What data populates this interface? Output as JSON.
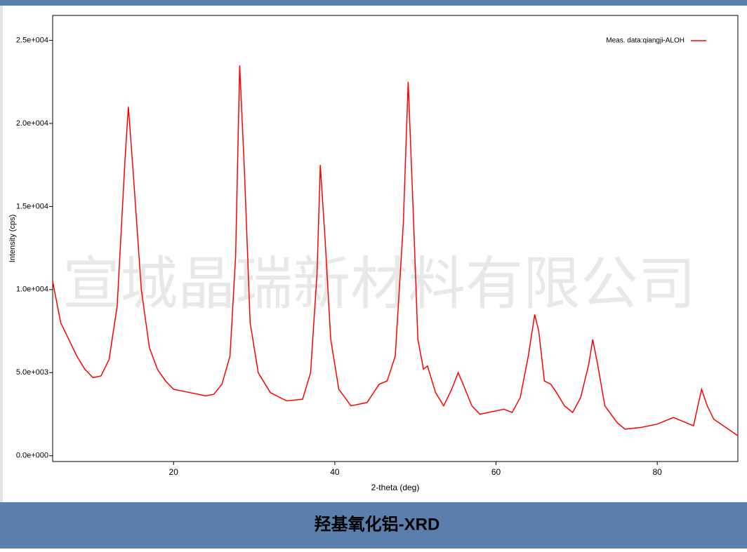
{
  "chart_data": {
    "type": "line",
    "title": "羟基氧化铝-XRD",
    "watermark": "宣城晶瑞新材料有限公司",
    "x_label": "2-theta (deg)",
    "y_label": "Intensity (cps)",
    "legend": "top-right",
    "xlim": [
      5,
      90
    ],
    "ylim": [
      -350,
      26500
    ],
    "xticks": [
      20,
      40,
      60,
      80
    ],
    "yticks": [
      {
        "value": 0,
        "label": "0.0e+000"
      },
      {
        "value": 5000,
        "label": "5.0e+003"
      },
      {
        "value": 10000,
        "label": "1.0e+004"
      },
      {
        "value": 15000,
        "label": "1.5e+004"
      },
      {
        "value": 20000,
        "label": "2.0e+004"
      },
      {
        "value": 25000,
        "label": "2.5e+004"
      }
    ],
    "x": [
      5,
      6,
      7,
      8,
      9,
      10,
      11,
      12,
      13,
      14,
      14.4,
      15,
      16,
      17,
      18,
      19,
      20,
      22,
      24,
      25,
      26,
      27,
      27.7,
      28.2,
      28.8,
      29.5,
      30.5,
      32,
      34,
      36,
      37,
      37.8,
      38.2,
      38.8,
      39.5,
      40.5,
      42,
      44,
      45.5,
      46.5,
      47.5,
      48.5,
      49.1,
      49.7,
      50.3,
      51,
      51.5,
      52.5,
      53.5,
      54.5,
      55.3,
      56,
      57,
      58,
      60,
      61,
      62,
      63,
      64,
      64.8,
      65.3,
      66,
      66.8,
      67.5,
      68.5,
      69.5,
      70.5,
      71.5,
      72,
      72.6,
      73.5,
      75,
      76,
      78,
      80,
      82,
      83.5,
      84.5,
      85.5,
      86.2,
      87,
      88.5,
      90
    ],
    "series": [
      {
        "name": "Meas. data:qiangji-ALOH",
        "color": "#ff0000",
        "values": [
          10500,
          8000,
          7000,
          6000,
          5200,
          4700,
          4800,
          5800,
          9000,
          18000,
          21000,
          17000,
          10000,
          6500,
          5200,
          4500,
          4000,
          3800,
          3600,
          3700,
          4300,
          6000,
          12000,
          23500,
          17000,
          8000,
          5000,
          3800,
          3300,
          3400,
          5000,
          11000,
          17500,
          13000,
          7000,
          4000,
          3000,
          3200,
          4300,
          4500,
          6000,
          14000,
          22500,
          15000,
          7000,
          5200,
          5400,
          3800,
          3000,
          4000,
          5000,
          4200,
          3000,
          2500,
          2700,
          2800,
          2600,
          3500,
          6000,
          8500,
          7500,
          4500,
          4300,
          3800,
          3000,
          2600,
          3500,
          5500,
          7000,
          5500,
          3000,
          2000,
          1600,
          1700,
          1900,
          2300,
          2000,
          1800,
          4000,
          3000,
          2200,
          1700,
          1200
        ]
      }
    ]
  }
}
